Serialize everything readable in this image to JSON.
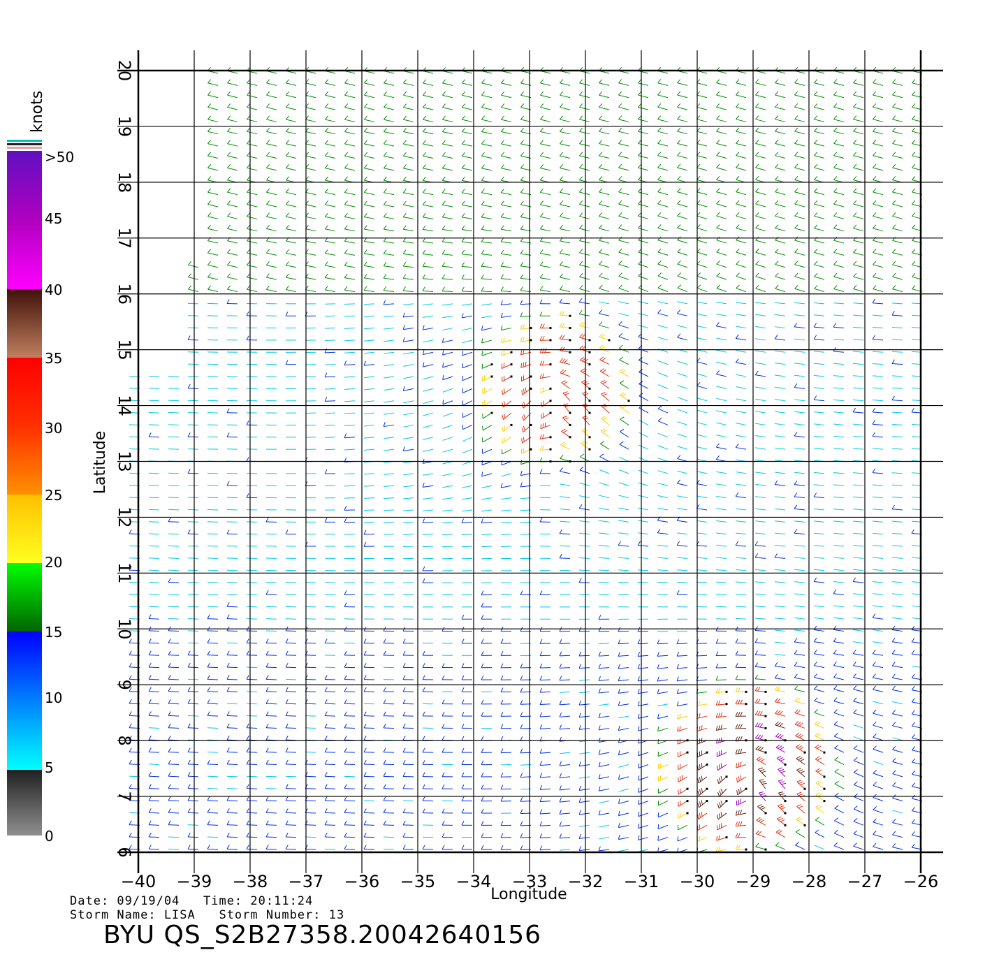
{
  "map": {
    "xlabel": "Longitude",
    "ylabel": "Latitude",
    "lon_range": [
      -40,
      -26
    ],
    "lat_range": [
      6,
      20
    ],
    "lon_ticks": [
      "−40",
      "−39",
      "−38",
      "−37",
      "−36",
      "−35",
      "−34",
      "−33",
      "−32",
      "−31",
      "−30",
      "−29",
      "−28",
      "−27",
      "−26"
    ],
    "lat_ticks": [
      "6",
      "7",
      "8",
      "9",
      "10",
      "11",
      "12",
      "13",
      "14",
      "15",
      "16",
      "17",
      "18",
      "19",
      "20"
    ],
    "grid": true
  },
  "legend": {
    "unit_label": "knots",
    "stops": [
      "0",
      "5",
      "10",
      "15",
      "20",
      "25",
      "30",
      "35",
      "40",
      "45",
      ">50"
    ],
    "colors": {
      "band_0_5": [
        "#909090",
        "#202020"
      ],
      "band_5_15": [
        "#00ffff",
        "#0000ff"
      ],
      "band_15_20": [
        "#006400",
        "#00ff00"
      ],
      "band_20_25": [
        "#ffff20",
        "#ffc000"
      ],
      "band_25_35": [
        "#ff8000",
        "#ff0000"
      ],
      "band_35_40": [
        "#c08060",
        "#401008"
      ],
      "band_40_50": [
        "#ff00ff",
        "#6010c0"
      ]
    }
  },
  "storm_regions": [
    {
      "name": "northern-wind-maximum",
      "lon": -32.5,
      "lat": 14.3,
      "speed_knots": 30
    },
    {
      "name": "southern-wind-maximum",
      "lon": -29.0,
      "lat": 7.5,
      "speed_knots": 40
    }
  ],
  "info": {
    "date_line": "Date: 09/19/04   Time: 20:11:24",
    "storm_line": "Storm Name: LISA   Storm Number: 13",
    "product_id": "BYU QS_S2B27358.20042640156"
  }
}
